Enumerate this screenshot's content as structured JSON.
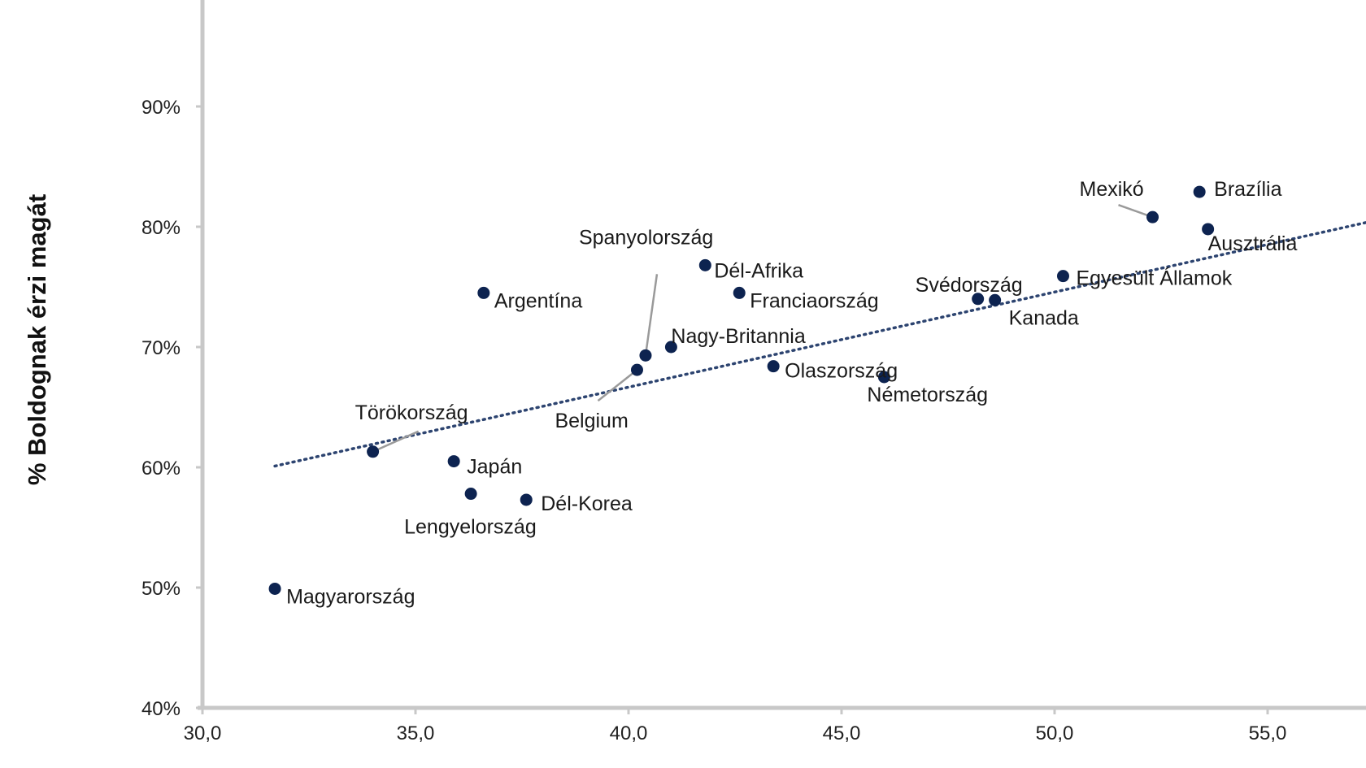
{
  "chart_data": {
    "type": "scatter",
    "ylabel": "% Boldognak érzi magát",
    "xlabel": "",
    "xlim": [
      30,
      57.5
    ],
    "ylim": [
      40,
      95
    ],
    "xticks": [
      "30,0",
      "35,0",
      "40,0",
      "45,0",
      "50,0",
      "55,0"
    ],
    "xtick_values": [
      30,
      35,
      40,
      45,
      50,
      55
    ],
    "yticks": [
      "40%",
      "50%",
      "60%",
      "70%",
      "80%",
      "90%"
    ],
    "ytick_values": [
      40,
      50,
      60,
      70,
      80,
      90
    ],
    "grid": false,
    "colors": {
      "point": "#0d2350",
      "trend": "#2d4470",
      "leader": "#9a9a9a",
      "axis": "#c8c8c8"
    },
    "trendline": {
      "style": "dotted",
      "x": [
        31.7,
        57.5
      ],
      "y": [
        60.1,
        80.5
      ]
    },
    "points": [
      {
        "name": "Magyarország",
        "x": 31.7,
        "y": 49.9
      },
      {
        "name": "Törökország",
        "x": 34.0,
        "y": 61.3
      },
      {
        "name": "Japán",
        "x": 35.9,
        "y": 60.5
      },
      {
        "name": "Lengyelország",
        "x": 36.3,
        "y": 57.8
      },
      {
        "name": "Argentína",
        "x": 36.6,
        "y": 74.5
      },
      {
        "name": "Dél-Korea",
        "x": 37.6,
        "y": 57.3
      },
      {
        "name": "Belgium",
        "x": 40.2,
        "y": 68.1
      },
      {
        "name": "Spanyolország",
        "x": 40.4,
        "y": 69.3
      },
      {
        "name": "Nagy-Britannia",
        "x": 41.0,
        "y": 70.0
      },
      {
        "name": "Dél-Afrika",
        "x": 41.8,
        "y": 76.8
      },
      {
        "name": "Franciaország",
        "x": 42.6,
        "y": 74.5
      },
      {
        "name": "Olaszország",
        "x": 43.4,
        "y": 68.4
      },
      {
        "name": "Németország",
        "x": 46.0,
        "y": 67.5
      },
      {
        "name": "Svédország",
        "x": 48.2,
        "y": 74.0
      },
      {
        "name": "Kanada",
        "x": 48.6,
        "y": 73.9
      },
      {
        "name": "Egyesült Államok",
        "x": 50.2,
        "y": 75.9
      },
      {
        "name": "Mexikó",
        "x": 52.3,
        "y": 80.8
      },
      {
        "name": "Brazília",
        "x": 53.4,
        "y": 82.9
      },
      {
        "name": "Ausztrália",
        "x": 53.6,
        "y": 79.8
      }
    ]
  }
}
